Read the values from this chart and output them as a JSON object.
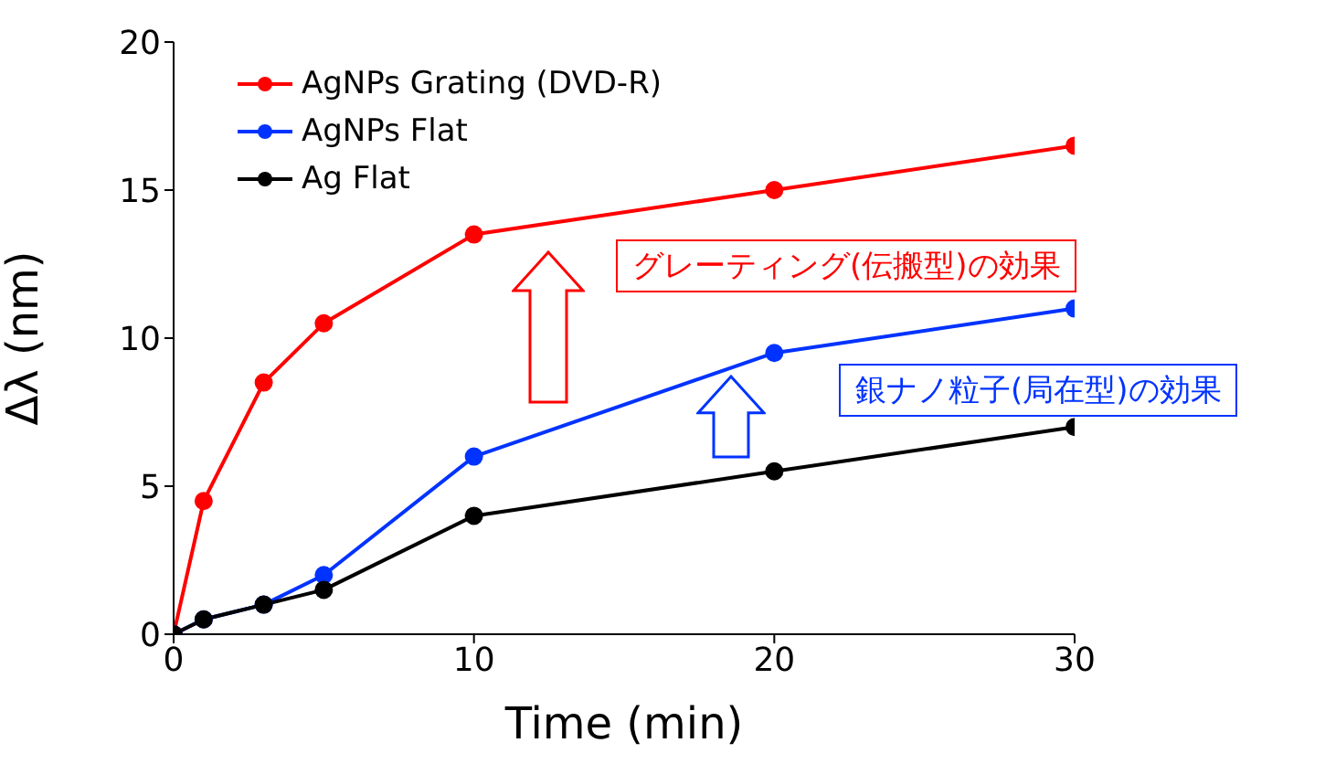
{
  "chart_data": {
    "type": "line",
    "xlabel": "Time (min)",
    "ylabel": "Δλ (nm)",
    "x": [
      0,
      1,
      3,
      5,
      10,
      20,
      30
    ],
    "series": [
      {
        "name": "AgNPs Grating (DVD-R)",
        "color": "#ff0000",
        "values": [
          0,
          4.5,
          8.5,
          10.5,
          13.5,
          15,
          16.5
        ]
      },
      {
        "name": "AgNPs Flat",
        "color": "#0033ff",
        "values": [
          0,
          0.5,
          1,
          2,
          6,
          9.5,
          11
        ]
      },
      {
        "name": "Ag Flat",
        "color": "#000000",
        "values": [
          0,
          0.5,
          1,
          1.5,
          4,
          5.5,
          7
        ]
      }
    ],
    "xlim": [
      0,
      30
    ],
    "xticks": [
      0,
      10,
      20,
      30
    ],
    "ylim": [
      0,
      20
    ],
    "yticks": [
      0,
      5,
      10,
      15,
      20
    ],
    "grid": false,
    "legend": "top left",
    "marker": "circle",
    "line_style": "solid",
    "annotations": [
      "グレーティング(伝搬型)の効果",
      "銀ナノ粒子(局在型)の効果"
    ]
  }
}
